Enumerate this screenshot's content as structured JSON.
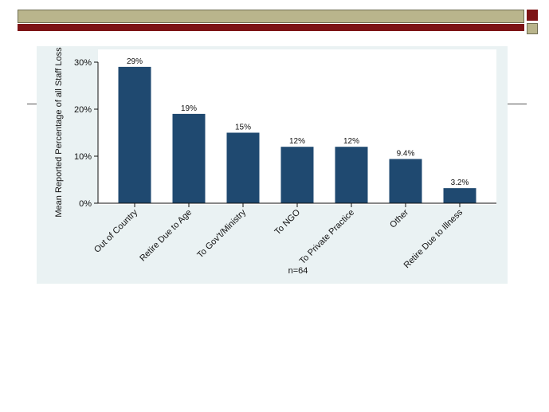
{
  "chart_data": {
    "type": "bar",
    "categories": [
      "Out of Country",
      "Retire Due to Age",
      "To Gov't/Ministry",
      "To NGO",
      "To Private Practice",
      "Other",
      "Retire Due to Illness"
    ],
    "values": [
      29,
      19,
      15,
      12,
      12,
      9.4,
      3.2
    ],
    "data_labels": [
      "29%",
      "19%",
      "15%",
      "12%",
      "12%",
      "9.4%",
      "3.2%"
    ],
    "ylabel": "Mean Reported Percentage of all Staff Loss",
    "xlabel": "n=64",
    "ylim": [
      0,
      30
    ],
    "yticks": [
      "0%",
      "10%",
      "20%",
      "30%"
    ],
    "bar_color": "#1f4970",
    "plot_background": "#ffffff",
    "panel_background": "#eaf2f3",
    "grid": false,
    "legend": "none"
  }
}
